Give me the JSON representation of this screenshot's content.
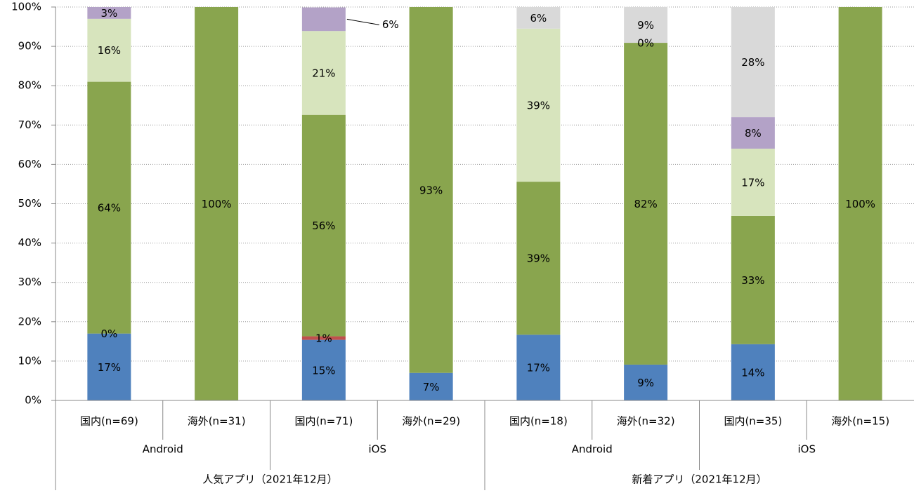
{
  "chart_data": {
    "type": "stacked_bar",
    "categories": [
      "国内(n=69)",
      "海外(n=31)",
      "国内(n=71)",
      "海外(n=29)",
      "国内(n=18)",
      "海外(n=32)",
      "国内(n=35)",
      "海外(n=15)"
    ],
    "category_groups": [
      "Android",
      "iOS",
      "Android",
      "iOS"
    ],
    "category_supergroups": [
      "人気アプリ（2021年12月）",
      "新着アプリ（2021年12月）"
    ],
    "series": [
      {
        "color": "#4f81bd",
        "values": [
          17,
          0,
          15.4,
          7,
          16.7,
          9.1,
          14.3,
          0
        ],
        "value_labels": [
          "17%",
          null,
          "15%",
          "7%",
          "17%",
          "9%",
          "14%",
          null
        ]
      },
      {
        "color": "#c0504d",
        "values": [
          0,
          0,
          0.9,
          0,
          0,
          0,
          0,
          0
        ],
        "value_labels": [
          "0%",
          null,
          "1%",
          null,
          null,
          null,
          null,
          null
        ]
      },
      {
        "color": "#89a54e",
        "values": [
          64,
          100,
          56.3,
          93,
          38.9,
          81.8,
          32.6,
          100
        ],
        "value_labels": [
          "64%",
          "100%",
          "56%",
          "93%",
          "39%",
          "82%",
          "33%",
          "100%"
        ]
      },
      {
        "color": "#d7e4bd",
        "values": [
          16,
          0,
          21.3,
          0,
          38.9,
          0,
          17.1,
          0
        ],
        "value_labels": [
          "16%",
          null,
          "21%",
          null,
          "39%",
          null,
          "17%",
          null
        ]
      },
      {
        "color": "#b3a2c7",
        "values": [
          3,
          0,
          6,
          0,
          0,
          0,
          8,
          0
        ],
        "value_labels": [
          "3%",
          null,
          "6%",
          null,
          null,
          "0%",
          "8%",
          null
        ]
      },
      {
        "color": "#d9d9d9",
        "values": [
          0,
          0,
          0,
          0,
          5.5,
          9.1,
          28,
          0
        ],
        "value_labels": [
          null,
          null,
          null,
          null,
          "6%",
          "9%",
          "28%",
          null
        ]
      }
    ],
    "ylim": [
      0,
      100
    ],
    "yticks": [
      {
        "value": 0,
        "label": "0%"
      },
      {
        "value": 10,
        "label": "10%"
      },
      {
        "value": 20,
        "label": "20%"
      },
      {
        "value": 30,
        "label": "30%"
      },
      {
        "value": 40,
        "label": "40%"
      },
      {
        "value": 50,
        "label": "50%"
      },
      {
        "value": 60,
        "label": "60%"
      },
      {
        "value": 70,
        "label": "70%"
      },
      {
        "value": 80,
        "label": "80%"
      },
      {
        "value": 90,
        "label": "90%"
      },
      {
        "value": 100,
        "label": "100%"
      }
    ],
    "grid": true
  }
}
